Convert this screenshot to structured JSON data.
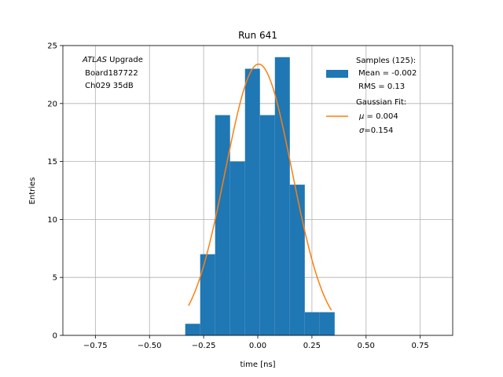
{
  "chart_data": {
    "type": "bar",
    "title": "Run 641",
    "xlabel": "time [ns]",
    "ylabel": "Entries",
    "xlim": [
      -0.9,
      0.9
    ],
    "ylim": [
      0,
      25
    ],
    "grid": true,
    "legend_position": "top-right",
    "xticks": [
      -0.75,
      -0.5,
      -0.25,
      0.0,
      0.25,
      0.5,
      0.75
    ],
    "xtick_labels": [
      "−0.75",
      "−0.50",
      "−0.25",
      "0.00",
      "0.25",
      "0.50",
      "0.75"
    ],
    "yticks": [
      0,
      5,
      10,
      15,
      20,
      25
    ],
    "ytick_labels": [
      "0",
      "5",
      "10",
      "15",
      "20",
      "25"
    ],
    "histogram": {
      "bin_edges": [
        -0.335,
        -0.266,
        -0.197,
        -0.128,
        -0.059,
        0.01,
        0.079,
        0.148,
        0.217,
        0.286,
        0.355
      ],
      "counts": [
        1,
        7,
        19,
        15,
        23,
        19,
        24,
        13,
        2,
        2
      ],
      "color": "#1f77b4"
    },
    "fit": {
      "type": "gaussian",
      "mu": 0.004,
      "sigma": 0.154,
      "amplitude": 23.4,
      "x_range": [
        -0.32,
        0.34
      ],
      "color": "#ff7f0e"
    },
    "annotation": {
      "italic": "ATLAS",
      "rest": " Upgrade",
      "line2": " Board187722",
      "line3": " Ch029 35dB"
    },
    "legend": {
      "samples_title": "Samples (125):",
      "samples_mean": " Mean = -0.002",
      "samples_rms": " RMS = 0.13",
      "fit_title": "Gaussian Fit:",
      "fit_mu_sym": "μ",
      "fit_mu_val": " = 0.004",
      "fit_sigma_sym": "σ",
      "fit_sigma_val": "=0.154"
    }
  }
}
